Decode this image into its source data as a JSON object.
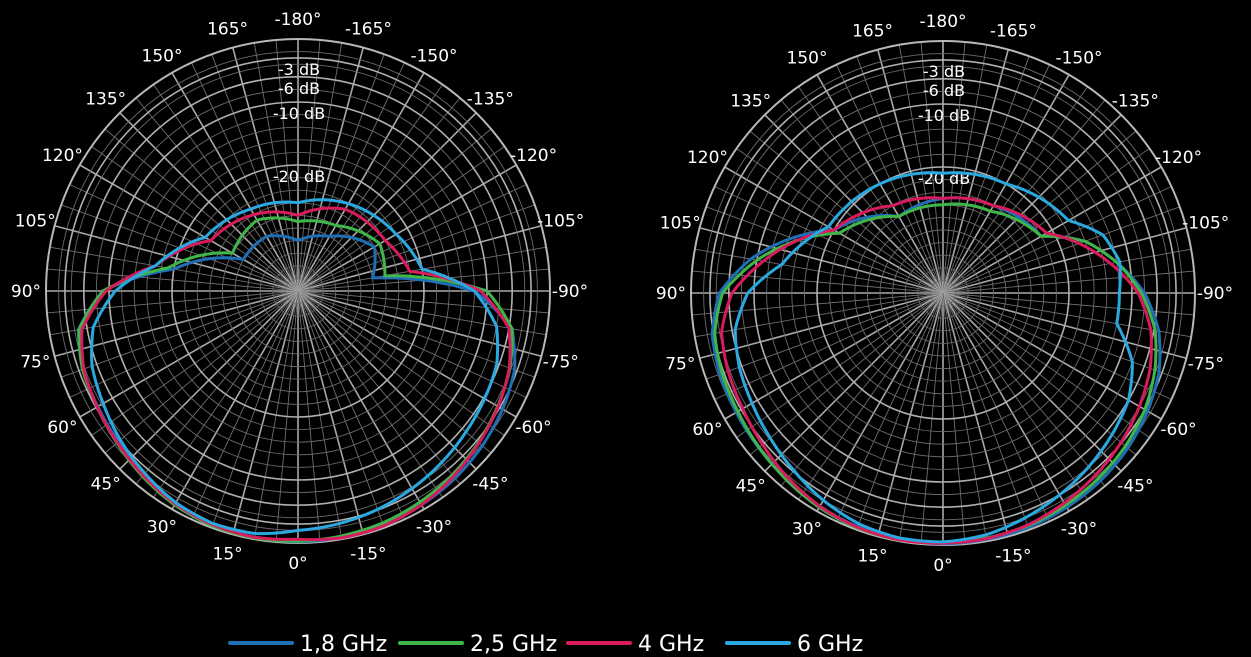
{
  "chart_data": {
    "type": "polar",
    "angle_unit": "deg",
    "angle_tick_labels": [
      "-180°",
      "165°",
      "150°",
      "135°",
      "120°",
      "105°",
      "90°",
      "75°",
      "60°",
      "45°",
      "30°",
      "15°",
      "0°",
      "-15°",
      "-30°",
      "-45°",
      "-60°",
      "-75°",
      "-90°",
      "-105°",
      "-120°",
      "-135°",
      "-150°",
      "-165°"
    ],
    "angle_tick_values": [
      -180,
      165,
      150,
      135,
      120,
      105,
      90,
      75,
      60,
      45,
      30,
      15,
      0,
      -15,
      -30,
      -45,
      -60,
      -75,
      -90,
      -105,
      -120,
      -135,
      -150,
      -165
    ],
    "radial_tick_labels": [
      "-3 dB",
      "-6 dB",
      "-10 dB",
      "-20 dB"
    ],
    "radial_tick_values": [
      -3,
      -6,
      -10,
      -20
    ],
    "r_range": [
      -40,
      0
    ],
    "legend": {
      "placement": "bottom-center",
      "entries": [
        {
          "label": "1,8 GHz",
          "color": "#1f6fb5"
        },
        {
          "label": "2,5 GHz",
          "color": "#3fb54a"
        },
        {
          "label": "4 GHz",
          "color": "#d81b5c"
        },
        {
          "label": "6 GHz",
          "color": "#29a9e0"
        }
      ]
    },
    "plots": [
      {
        "series": [
          {
            "name": "1,8 GHz",
            "color": "#1f6fb5",
            "angles": [
              0,
              10,
              20,
              30,
              40,
              50,
              60,
              70,
              80,
              90,
              100,
              120,
              150,
              180,
              210,
              240,
              260,
              270,
              280,
              290,
              300,
              310,
              320,
              330,
              340,
              350
            ],
            "values": [
              -0.2,
              -0.3,
              -0.6,
              -1.2,
              -2.0,
              -2.8,
              -3.3,
              -3.6,
              -4.6,
              -9,
              -20,
              -30,
              -30,
              -32,
              -30,
              -26,
              -28,
              -12,
              -5.5,
              -3.4,
              -2.5,
              -1.8,
              -1.2,
              -0.8,
              -0.5,
              -0.3
            ]
          },
          {
            "name": "2,5 GHz",
            "color": "#3fb54a",
            "angles": [
              0,
              10,
              20,
              30,
              40,
              50,
              60,
              70,
              80,
              90,
              100,
              120,
              150,
              180,
              210,
              240,
              260,
              270,
              280,
              290,
              300,
              310,
              320,
              330,
              340,
              350
            ],
            "values": [
              -0.3,
              -0.2,
              -0.3,
              -0.8,
              -1.6,
              -2.5,
              -3.2,
              -3.6,
              -4.7,
              -9,
              -19,
              -28,
              -27,
              -29,
              -28,
              -25,
              -26,
              -10,
              -5.5,
              -4.2,
              -3.4,
              -2.6,
              -1.9,
              -1.3,
              -0.8,
              -0.5
            ]
          },
          {
            "name": "4 GHz",
            "color": "#d81b5c",
            "angles": [
              0,
              10,
              20,
              30,
              40,
              50,
              60,
              70,
              80,
              90,
              100,
              120,
              150,
              180,
              210,
              240,
              260,
              270,
              280,
              290,
              300,
              310,
              320,
              330,
              340,
              350
            ],
            "values": [
              -0.6,
              -0.3,
              -0.5,
              -1.0,
              -1.8,
              -2.6,
              -3.2,
              -3.8,
              -5.2,
              -9.5,
              -17,
              -24,
              -26,
              -28,
              -25,
              -24,
              -22,
              -11,
              -6,
              -4.3,
              -3.3,
              -2.5,
              -1.6,
              -0.8,
              -0.3,
              -0.2
            ]
          },
          {
            "name": "6 GHz",
            "color": "#29a9e0",
            "angles": [
              0,
              10,
              20,
              30,
              40,
              50,
              60,
              70,
              80,
              90,
              100,
              120,
              150,
              180,
              210,
              240,
              260,
              270,
              280,
              290,
              300,
              310,
              320,
              330,
              340,
              350
            ],
            "values": [
              -2.0,
              -0.9,
              -0.7,
              -1.2,
              -2.2,
              -3.2,
              -4.3,
              -5.2,
              -7.0,
              -11,
              -17,
              -23,
              -25,
              -26,
              -24,
              -22,
              -20,
              -12,
              -8,
              -6.4,
              -5.8,
              -5.2,
              -4.5,
              -3.8,
              -3.1,
              -2.5
            ]
          }
        ]
      },
      {
        "series": [
          {
            "name": "1,8 GHz",
            "color": "#1f6fb5",
            "angles": [
              0,
              10,
              20,
              30,
              40,
              50,
              60,
              70,
              80,
              90,
              100,
              120,
              150,
              180,
              210,
              240,
              250,
              260,
              270,
              280,
              290,
              300,
              310,
              320,
              330,
              340,
              350
            ],
            "values": [
              -0.2,
              -0.3,
              -0.5,
              -0.9,
              -1.4,
              -1.8,
              -2.1,
              -2.3,
              -2.8,
              -4.5,
              -9,
              -20,
              -26,
              -25,
              -24,
              -22,
              -16,
              -12,
              -8,
              -5.2,
              -3.5,
              -2.5,
              -1.7,
              -1.1,
              -0.7,
              -0.4,
              -0.3
            ]
          },
          {
            "name": "2,5 GHz",
            "color": "#3fb54a",
            "angles": [
              0,
              10,
              20,
              30,
              40,
              50,
              60,
              70,
              80,
              90,
              100,
              120,
              150,
              180,
              210,
              240,
              250,
              260,
              270,
              280,
              290,
              300,
              310,
              320,
              330,
              340,
              350
            ],
            "values": [
              -0.4,
              -0.2,
              -0.3,
              -0.7,
              -1.3,
              -1.9,
              -2.4,
              -2.7,
              -3.2,
              -5,
              -10,
              -21,
              -26,
              -26,
              -25,
              -22,
              -16,
              -12,
              -8.5,
              -5.8,
              -4.2,
              -3.0,
              -2.2,
              -1.6,
              -1.1,
              -0.7,
              -0.5
            ]
          },
          {
            "name": "4 GHz",
            "color": "#d81b5c",
            "angles": [
              0,
              10,
              20,
              30,
              40,
              50,
              60,
              70,
              80,
              90,
              100,
              120,
              150,
              180,
              210,
              240,
              250,
              260,
              270,
              280,
              290,
              300,
              310,
              320,
              330,
              340,
              350
            ],
            "values": [
              -0.3,
              -0.2,
              -0.4,
              -0.9,
              -1.7,
              -2.6,
              -3.3,
              -3.7,
              -4.3,
              -6.5,
              -11,
              -20,
              -24,
              -25,
              -24,
              -21,
              -17,
              -13,
              -9,
              -6.5,
              -5,
              -4,
              -3.1,
              -2.3,
              -1.5,
              -0.8,
              -0.4
            ]
          },
          {
            "name": "6 GHz",
            "color": "#29a9e0",
            "angles": [
              0,
              10,
              20,
              30,
              40,
              50,
              60,
              70,
              80,
              90,
              100,
              120,
              150,
              180,
              210,
              240,
              250,
              260,
              270,
              280,
              290,
              300,
              310,
              320,
              330,
              340,
              350
            ],
            "values": [
              -0.5,
              -0.5,
              -1.0,
              -2.0,
              -3.2,
              -4.2,
              -5.0,
              -5.6,
              -6.5,
              -9,
              -14,
              -19,
              -20,
              -21,
              -20,
              -17,
              -13,
              -11.5,
              -12,
              -12,
              -8,
              -6,
              -5,
              -4,
              -3,
              -2,
              -1
            ]
          }
        ]
      }
    ]
  }
}
